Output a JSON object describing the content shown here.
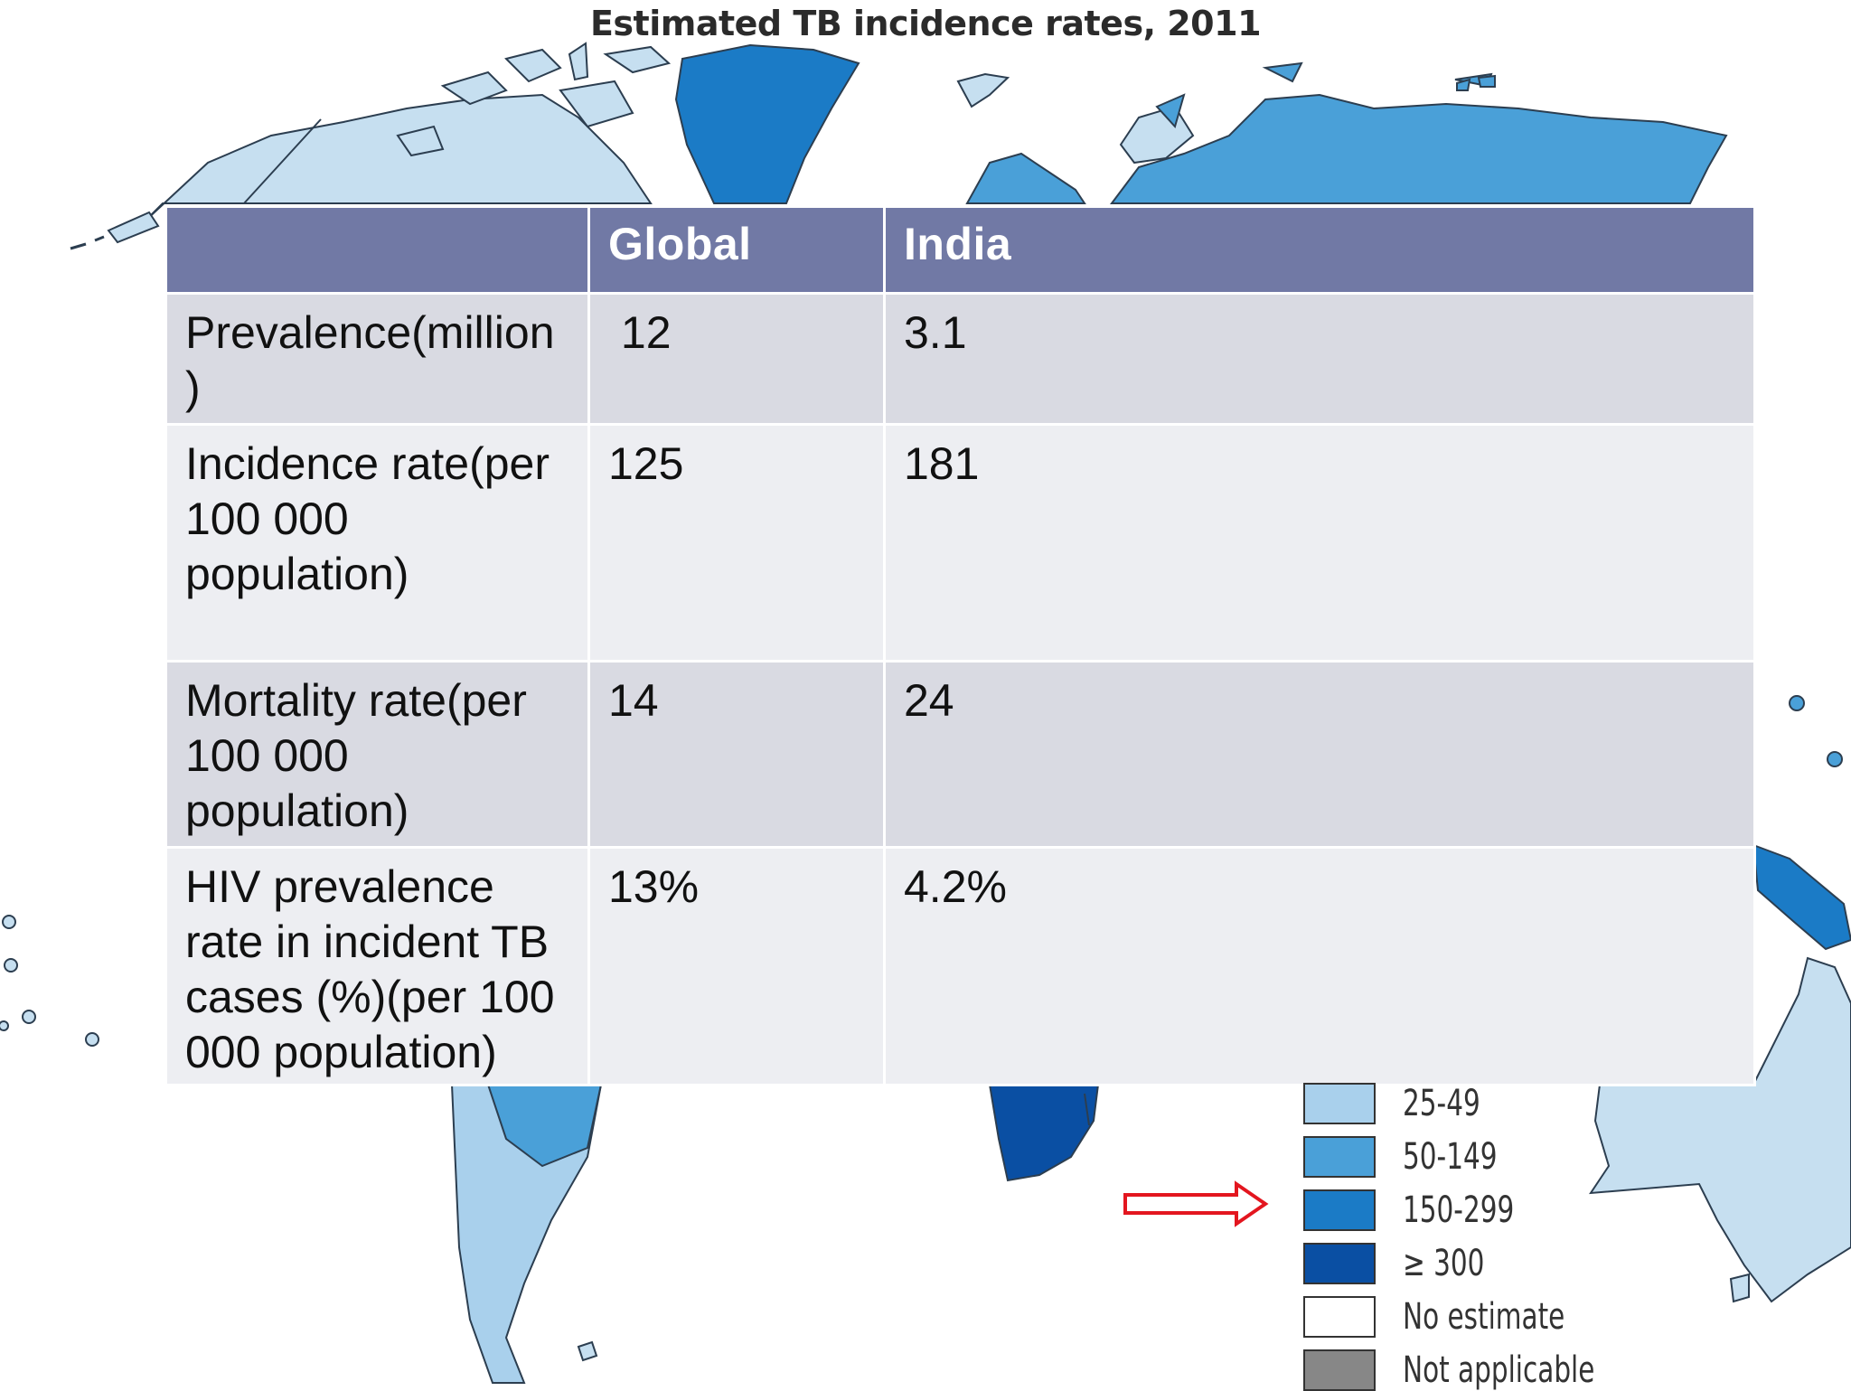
{
  "map": {
    "title": "Estimated TB incidence rates, 2011",
    "colors": {
      "ocean": "#ffffff",
      "very_light": "#c6dff0",
      "light": "#a9d0ec",
      "mid": "#4aa0d8",
      "strong": "#1b7bc6",
      "darkest": "#0a4fa3",
      "no_estimate": "#ffffff",
      "not_applicable": "#878787"
    },
    "legend": [
      {
        "label": "25-49",
        "color": "#a9d0ec"
      },
      {
        "label": "50-149",
        "color": "#4aa0d8"
      },
      {
        "label": "150-299",
        "color": "#1b7bc6"
      },
      {
        "label": "≥ 300",
        "color": "#0a4fa3"
      },
      {
        "label": "No estimate",
        "color": "#ffffff"
      },
      {
        "label": "Not applicable",
        "color": "#878787"
      }
    ],
    "arrow_color": "#e3161f"
  },
  "table": {
    "header": [
      "",
      "Global",
      "India"
    ],
    "rows": [
      {
        "label": "Prevalence(million )",
        "global": " 12",
        "india": "3.1"
      },
      {
        "label": "Incidence rate(per 100 000 population)",
        "global": "125",
        "india": "181"
      },
      {
        "label": "Mortality rate(per 100 000 population)",
        "global": "14",
        "india": "24"
      },
      {
        "label": "HIV prevalence rate in incident TB cases (%)(per 100 000 population)",
        "global": "13%",
        "india": "4.2%"
      }
    ]
  }
}
